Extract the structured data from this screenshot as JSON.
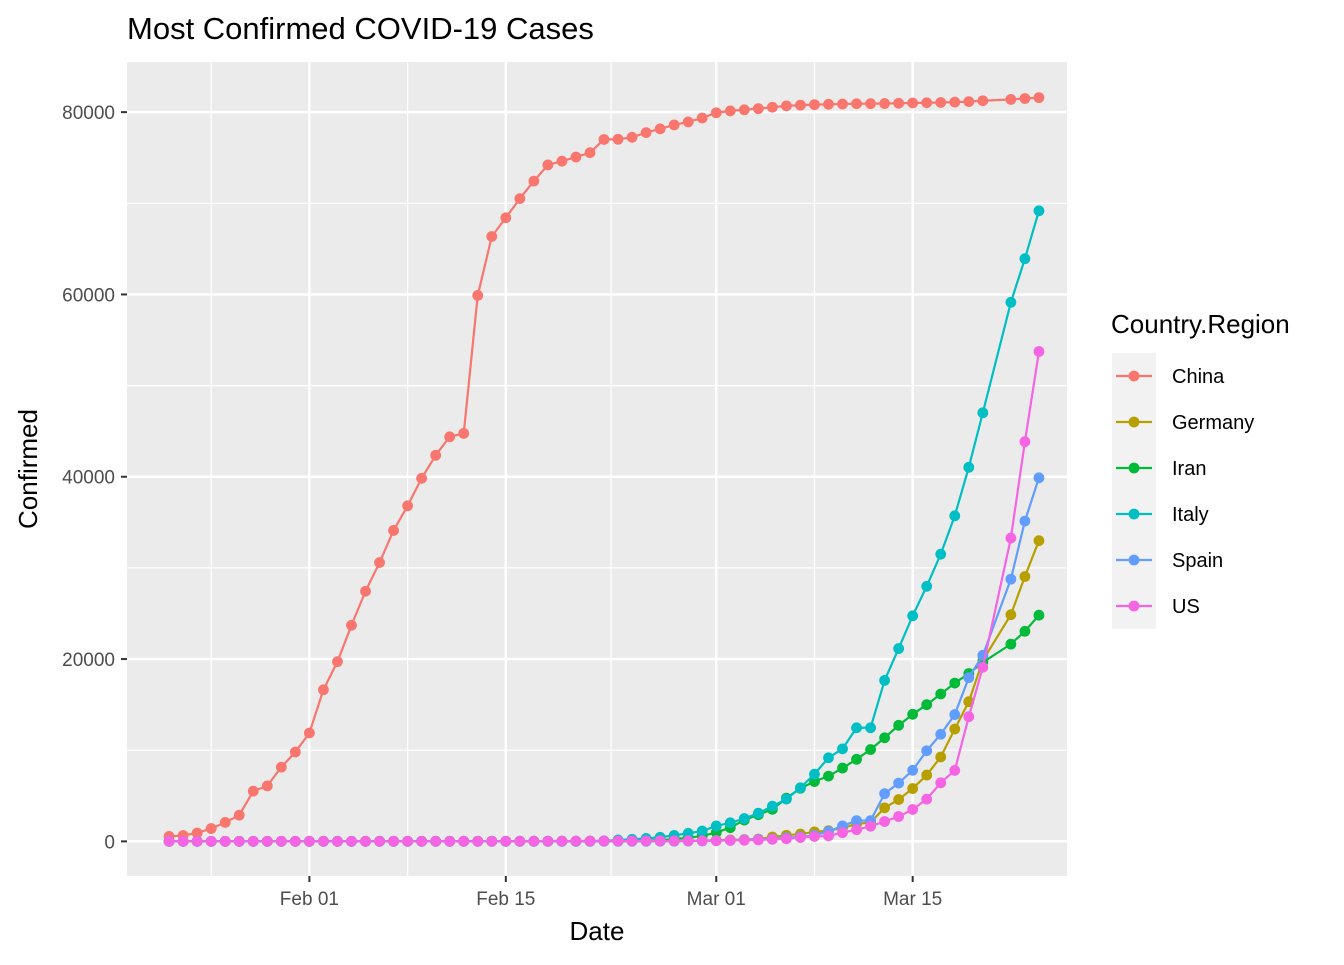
{
  "chart_data": {
    "type": "line",
    "title": "Most Confirmed COVID-19 Cases",
    "xlabel": "Date",
    "ylabel": "Confirmed",
    "x_ticks": [
      "Feb 01",
      "Feb 15",
      "Mar 01",
      "Mar 15"
    ],
    "y_ticks": [
      "0",
      "20000",
      "40000",
      "60000",
      "80000"
    ],
    "xlim": [
      "2020-01-19",
      "2020-03-26"
    ],
    "ylim": [
      -3800,
      85500
    ],
    "grid": true,
    "legend": {
      "title": "Country.Region",
      "position": "right"
    },
    "markers": true,
    "series": [
      {
        "name": "China",
        "color": "#F8766D",
        "x": [
          "2020-01-22",
          "2020-01-23",
          "2020-01-24",
          "2020-01-25",
          "2020-01-26",
          "2020-01-27",
          "2020-01-28",
          "2020-01-29",
          "2020-01-30",
          "2020-01-31",
          "2020-02-01",
          "2020-02-02",
          "2020-02-03",
          "2020-02-04",
          "2020-02-05",
          "2020-02-06",
          "2020-02-07",
          "2020-02-08",
          "2020-02-09",
          "2020-02-10",
          "2020-02-11",
          "2020-02-12",
          "2020-02-13",
          "2020-02-14",
          "2020-02-15",
          "2020-02-16",
          "2020-02-17",
          "2020-02-18",
          "2020-02-19",
          "2020-02-20",
          "2020-02-21",
          "2020-02-22",
          "2020-02-23",
          "2020-02-24",
          "2020-02-25",
          "2020-02-26",
          "2020-02-27",
          "2020-02-28",
          "2020-02-29",
          "2020-03-01",
          "2020-03-02",
          "2020-03-03",
          "2020-03-04",
          "2020-03-05",
          "2020-03-06",
          "2020-03-07",
          "2020-03-08",
          "2020-03-09",
          "2020-03-10",
          "2020-03-11",
          "2020-03-12",
          "2020-03-13",
          "2020-03-14",
          "2020-03-15",
          "2020-03-16",
          "2020-03-17",
          "2020-03-18",
          "2020-03-19",
          "2020-03-20",
          "2020-03-22",
          "2020-03-23",
          "2020-03-24"
        ],
        "y": [
          548,
          643,
          920,
          1406,
          2075,
          2877,
          5509,
          6087,
          8141,
          9802,
          11891,
          16630,
          19716,
          23707,
          27440,
          30587,
          34110,
          36814,
          39829,
          42354,
          44386,
          44759,
          59895,
          66358,
          68413,
          70513,
          72434,
          74211,
          74619,
          75077,
          75550,
          77001,
          77022,
          77241,
          77754,
          78166,
          78600,
          78928,
          79356,
          79932,
          80136,
          80261,
          80386,
          80537,
          80690,
          80770,
          80823,
          80860,
          80887,
          80921,
          80932,
          80945,
          80977,
          81003,
          81033,
          81058,
          81102,
          81156,
          81250,
          81397,
          81496,
          81591
        ]
      },
      {
        "name": "Germany",
        "color": "#B79F00",
        "x": [
          "2020-01-22",
          "2020-01-27",
          "2020-02-01",
          "2020-02-10",
          "2020-02-20",
          "2020-02-26",
          "2020-02-28",
          "2020-03-01",
          "2020-03-02",
          "2020-03-03",
          "2020-03-04",
          "2020-03-05",
          "2020-03-06",
          "2020-03-07",
          "2020-03-08",
          "2020-03-09",
          "2020-03-10",
          "2020-03-11",
          "2020-03-12",
          "2020-03-13",
          "2020-03-14",
          "2020-03-15",
          "2020-03-16",
          "2020-03-17",
          "2020-03-18",
          "2020-03-19",
          "2020-03-20",
          "2020-03-22",
          "2020-03-23",
          "2020-03-24"
        ],
        "y": [
          0,
          1,
          8,
          16,
          16,
          27,
          48,
          130,
          159,
          196,
          262,
          482,
          670,
          799,
          1040,
          1176,
          1457,
          1908,
          2078,
          3675,
          4585,
          5795,
          7272,
          9257,
          12327,
          15320,
          19848,
          24873,
          29056,
          32986
        ]
      },
      {
        "name": "Iran",
        "color": "#00BA38",
        "x": [
          "2020-01-22",
          "2020-02-18",
          "2020-02-19",
          "2020-02-20",
          "2020-02-21",
          "2020-02-22",
          "2020-02-23",
          "2020-02-24",
          "2020-02-25",
          "2020-02-26",
          "2020-02-27",
          "2020-02-28",
          "2020-02-29",
          "2020-03-01",
          "2020-03-02",
          "2020-03-03",
          "2020-03-04",
          "2020-03-05",
          "2020-03-06",
          "2020-03-07",
          "2020-03-08",
          "2020-03-09",
          "2020-03-10",
          "2020-03-11",
          "2020-03-12",
          "2020-03-13",
          "2020-03-14",
          "2020-03-15",
          "2020-03-16",
          "2020-03-17",
          "2020-03-18",
          "2020-03-19",
          "2020-03-20",
          "2020-03-22",
          "2020-03-23",
          "2020-03-24"
        ],
        "y": [
          0,
          0,
          2,
          5,
          18,
          28,
          43,
          61,
          95,
          139,
          245,
          388,
          593,
          978,
          1501,
          2336,
          2922,
          3513,
          4747,
          5823,
          6566,
          7161,
          8042,
          9000,
          10075,
          11364,
          12729,
          13938,
          14991,
          16169,
          17361,
          18407,
          19644,
          21638,
          23049,
          24811
        ]
      },
      {
        "name": "Italy",
        "color": "#00BFC4",
        "x": [
          "2020-01-22",
          "2020-01-31",
          "2020-02-21",
          "2020-02-22",
          "2020-02-23",
          "2020-02-24",
          "2020-02-25",
          "2020-02-26",
          "2020-02-27",
          "2020-02-28",
          "2020-02-29",
          "2020-03-01",
          "2020-03-02",
          "2020-03-03",
          "2020-03-04",
          "2020-03-05",
          "2020-03-06",
          "2020-03-07",
          "2020-03-08",
          "2020-03-09",
          "2020-03-10",
          "2020-03-11",
          "2020-03-12",
          "2020-03-13",
          "2020-03-14",
          "2020-03-15",
          "2020-03-16",
          "2020-03-17",
          "2020-03-18",
          "2020-03-19",
          "2020-03-20",
          "2020-03-22",
          "2020-03-23",
          "2020-03-24"
        ],
        "y": [
          0,
          2,
          20,
          62,
          155,
          229,
          322,
          453,
          655,
          888,
          1128,
          1694,
          2036,
          2502,
          3089,
          3858,
          4636,
          5883,
          7375,
          9172,
          10149,
          12462,
          12462,
          17660,
          21157,
          24747,
          27980,
          31506,
          35713,
          41035,
          47021,
          59138,
          63927,
          69176
        ]
      },
      {
        "name": "Spain",
        "color": "#619CFF",
        "x": [
          "2020-01-22",
          "2020-02-01",
          "2020-02-25",
          "2020-02-26",
          "2020-02-27",
          "2020-02-28",
          "2020-02-29",
          "2020-03-01",
          "2020-03-02",
          "2020-03-03",
          "2020-03-04",
          "2020-03-05",
          "2020-03-06",
          "2020-03-07",
          "2020-03-08",
          "2020-03-09",
          "2020-03-10",
          "2020-03-11",
          "2020-03-12",
          "2020-03-13",
          "2020-03-14",
          "2020-03-15",
          "2020-03-16",
          "2020-03-17",
          "2020-03-18",
          "2020-03-19",
          "2020-03-20",
          "2020-03-22",
          "2020-03-23",
          "2020-03-24"
        ],
        "y": [
          0,
          1,
          6,
          13,
          15,
          32,
          45,
          84,
          120,
          165,
          222,
          259,
          400,
          500,
          673,
          1073,
          1695,
          2277,
          2277,
          5232,
          6391,
          7798,
          9942,
          11748,
          13910,
          17963,
          20410,
          28768,
          35136,
          39885
        ]
      },
      {
        "name": "US",
        "color": "#F564E3",
        "x": [
          "2020-01-22",
          "2020-02-01",
          "2020-02-15",
          "2020-02-24",
          "2020-02-25",
          "2020-02-26",
          "2020-02-27",
          "2020-02-28",
          "2020-02-29",
          "2020-03-01",
          "2020-03-02",
          "2020-03-03",
          "2020-03-04",
          "2020-03-05",
          "2020-03-06",
          "2020-03-07",
          "2020-03-08",
          "2020-03-09",
          "2020-03-10",
          "2020-03-11",
          "2020-03-12",
          "2020-03-13",
          "2020-03-14",
          "2020-03-15",
          "2020-03-16",
          "2020-03-17",
          "2020-03-18",
          "2020-03-19",
          "2020-03-20",
          "2020-03-22",
          "2020-03-23",
          "2020-03-24"
        ],
        "y": [
          1,
          8,
          13,
          53,
          53,
          59,
          60,
          62,
          70,
          76,
          101,
          122,
          153,
          221,
          278,
          417,
          537,
          605,
          959,
          1281,
          1663,
          2179,
          2727,
          3499,
          4632,
          6421,
          7783,
          13677,
          19100,
          33272,
          43847,
          53740
        ]
      }
    ]
  }
}
